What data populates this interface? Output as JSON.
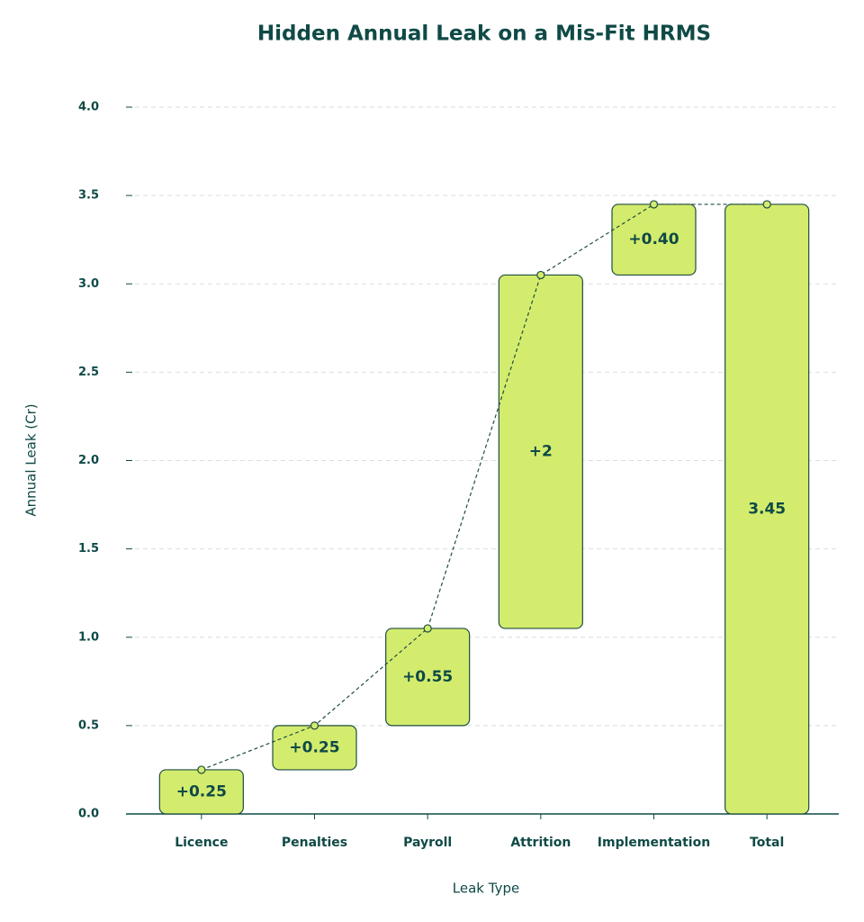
{
  "chart_data": {
    "type": "waterfall",
    "title": "Hidden Annual Leak on a Mis-Fit HRMS",
    "x_label": "Leak Type",
    "y_label": "Annual Leak (Cr)",
    "categories": [
      "Licence",
      "Penalties",
      "Payroll",
      "Attrition",
      "Implementation",
      "Total"
    ],
    "measures": [
      "relative",
      "relative",
      "relative",
      "relative",
      "relative",
      "total"
    ],
    "values": [
      0.25,
      0.25,
      0.55,
      2,
      0.4,
      3.45
    ],
    "value_labels": [
      "+0.25",
      "+0.25",
      "+0.55",
      "+2",
      "+0.40",
      "3.45"
    ],
    "color": "#d4ec6e",
    "edge_color": "#1f4d3f",
    "ylim": [
      0,
      4
    ],
    "yticks": [
      {
        "value": 0,
        "label": "0.0"
      },
      0.5,
      {
        "value": 1,
        "label": "1.0"
      },
      1.5,
      {
        "value": 2,
        "label": "2.0"
      },
      2.5,
      {
        "value": 3,
        "label": "3.0"
      },
      3.5,
      {
        "value": 4,
        "label": "4.0"
      }
    ],
    "grid": true
  }
}
